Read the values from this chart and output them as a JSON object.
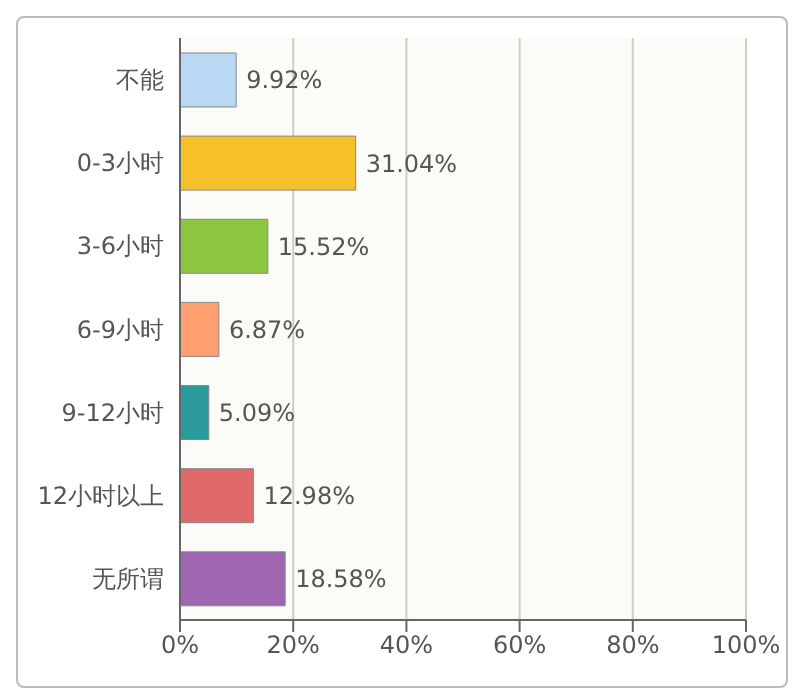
{
  "chart_data": {
    "type": "bar",
    "orientation": "horizontal",
    "categories": [
      "不能",
      "0-3小时",
      "3-6小时",
      "6-9小时",
      "9-12小时",
      "12小时以上",
      "无所谓"
    ],
    "values": [
      9.92,
      31.04,
      15.52,
      6.87,
      5.09,
      12.98,
      18.58
    ],
    "colors": [
      "#b8d8f4",
      "#f5c02a",
      "#8dc63f",
      "#ff9f70",
      "#2a9a9a",
      "#e06a6a",
      "#a065b0"
    ],
    "value_labels": [
      "9.92%",
      "31.04%",
      "15.52%",
      "6.87%",
      "5.09%",
      "12.98%",
      "18.58%"
    ],
    "xlim": [
      0,
      100
    ],
    "xticks": [
      {
        "value": 0,
        "label": "0%"
      },
      {
        "value": 20,
        "label": "20%"
      },
      {
        "value": 40,
        "label": "40%"
      },
      {
        "value": 60,
        "label": "60%"
      },
      {
        "value": 80,
        "label": "80%"
      },
      {
        "value": 100,
        "label": "100%"
      }
    ],
    "grid": "x"
  }
}
